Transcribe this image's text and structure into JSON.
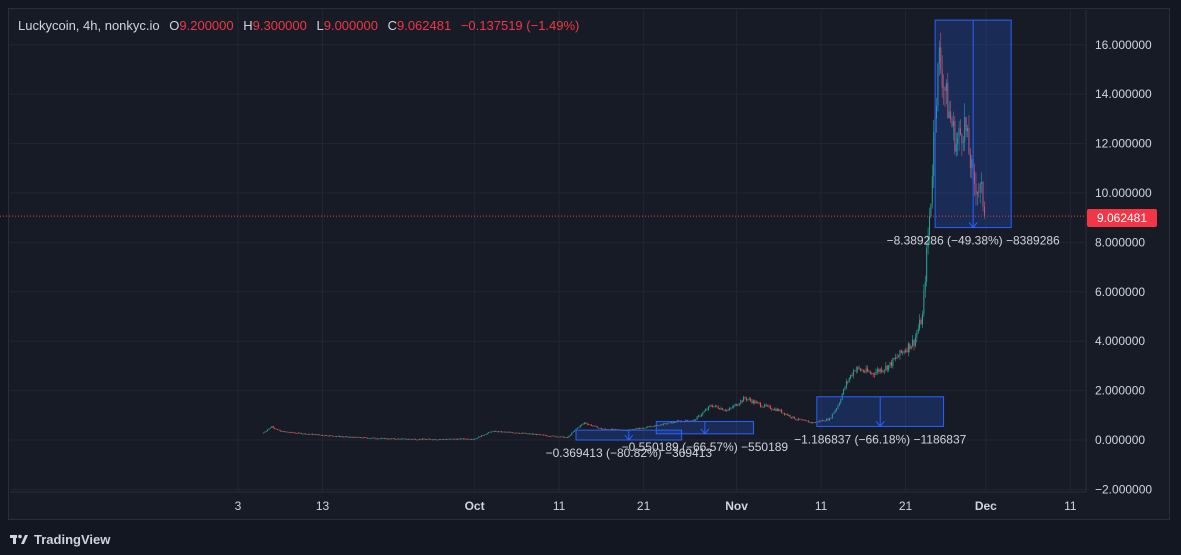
{
  "header": {
    "symbol": "Luckycoin, 4h, nonkyc.io",
    "open_label": "O",
    "open": "9.200000",
    "high_label": "H",
    "high": "9.300000",
    "low_label": "L",
    "low": "9.000000",
    "close_label": "C",
    "close": "9.062481",
    "change": "−0.137519 (−1.49%)"
  },
  "last_price": "9.062481",
  "colors": {
    "up": "#26a69a",
    "down": "#ef5350",
    "measure": "#2962ff",
    "price_line": "#f23645"
  },
  "footer": {
    "brand": "TradingView",
    "logo_icon": "tradingview-logo-icon"
  },
  "chart_data": {
    "type": "candlestick",
    "timeframe": "4h",
    "ylim": [
      -2,
      17
    ],
    "y_ticks": [
      "−2.000000",
      "0.000000",
      "2.000000",
      "4.000000",
      "6.000000",
      "8.000000",
      "10.000000",
      "12.000000",
      "14.000000",
      "16.000000"
    ],
    "y_tick_values": [
      -2,
      0,
      2,
      4,
      6,
      8,
      10,
      12,
      14,
      16
    ],
    "x_ticks": [
      {
        "label": "3",
        "bold": false
      },
      {
        "label": "13",
        "bold": false
      },
      {
        "label": "Oct",
        "bold": true
      },
      {
        "label": "11",
        "bold": false
      },
      {
        "label": "21",
        "bold": false
      },
      {
        "label": "Nov",
        "bold": true
      },
      {
        "label": "11",
        "bold": false
      },
      {
        "label": "21",
        "bold": false
      },
      {
        "label": "Dec",
        "bold": true
      },
      {
        "label": "11",
        "bold": false
      }
    ],
    "price_path": [
      {
        "d": 3,
        "p": 0.3
      },
      {
        "d": 4,
        "p": 0.55
      },
      {
        "d": 5,
        "p": 0.35
      },
      {
        "d": 8,
        "p": 0.25
      },
      {
        "d": 13,
        "p": 0.12
      },
      {
        "d": 18,
        "p": 0.05
      },
      {
        "d": 23,
        "p": 0.03
      },
      {
        "d": 28,
        "p": 0.05
      },
      {
        "d": 30,
        "p": 0.35
      },
      {
        "d": 33,
        "p": 0.3
      },
      {
        "d": 36,
        "p": 0.2
      },
      {
        "d": 39,
        "p": 0.1
      },
      {
        "d": 40,
        "p": 0.45
      },
      {
        "d": 41,
        "p": 0.7
      },
      {
        "d": 43,
        "p": 0.45
      },
      {
        "d": 46,
        "p": 0.4
      },
      {
        "d": 49,
        "p": 0.55
      },
      {
        "d": 52,
        "p": 0.75
      },
      {
        "d": 54,
        "p": 0.8
      },
      {
        "d": 56,
        "p": 1.4
      },
      {
        "d": 58,
        "p": 1.2
      },
      {
        "d": 60,
        "p": 1.7
      },
      {
        "d": 62,
        "p": 1.4
      },
      {
        "d": 64,
        "p": 1.2
      },
      {
        "d": 66,
        "p": 0.85
      },
      {
        "d": 68,
        "p": 0.7
      },
      {
        "d": 70,
        "p": 0.85
      },
      {
        "d": 71,
        "p": 1.4
      },
      {
        "d": 72,
        "p": 2.3
      },
      {
        "d": 73,
        "p": 2.9
      },
      {
        "d": 75,
        "p": 2.7
      },
      {
        "d": 77,
        "p": 3.0
      },
      {
        "d": 79,
        "p": 3.7
      },
      {
        "d": 80,
        "p": 4.0
      },
      {
        "d": 81,
        "p": 5.0
      },
      {
        "d": 81.5,
        "p": 7.5
      },
      {
        "d": 82,
        "p": 9.8
      },
      {
        "d": 82.5,
        "p": 13.5
      },
      {
        "d": 83,
        "p": 15.5
      },
      {
        "d": 84,
        "p": 13.5
      },
      {
        "d": 85,
        "p": 12.0
      },
      {
        "d": 86,
        "p": 12.8
      },
      {
        "d": 87,
        "p": 10.5
      },
      {
        "d": 88,
        "p": 10.0
      },
      {
        "d": 88.5,
        "p": 9.06
      }
    ],
    "measurements": [
      {
        "d1": 40,
        "d2": 52.5,
        "y_top": 0.4,
        "y_bottom": 0.0,
        "label": "−0.369413 (−80.82%) −369413"
      },
      {
        "d1": 49.5,
        "d2": 61,
        "y_top": 0.75,
        "y_bottom": 0.25,
        "label": "−0.550189 (−66.57%) −550189"
      },
      {
        "d1": 68.5,
        "d2": 83.5,
        "y_top": 1.75,
        "y_bottom": 0.55,
        "label": "−1.186837 (−66.18%) −1186837"
      },
      {
        "d1": 82.5,
        "d2": 91.5,
        "y_top": 17.0,
        "y_bottom": 8.6,
        "label": "−8.389286 (−49.38%) −8389286"
      }
    ]
  }
}
